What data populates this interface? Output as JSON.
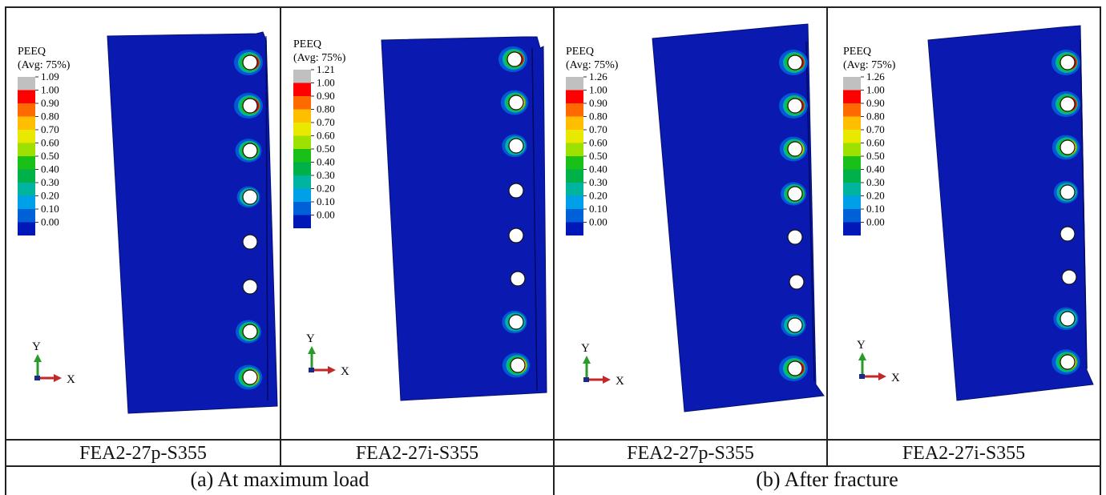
{
  "legend": {
    "title": "PEEQ",
    "subtitle": "(Avg: 75%)",
    "colors": [
      "#c0c0c0",
      "#ff0000",
      "#ff6a00",
      "#ffbe00",
      "#e8e800",
      "#9ee000",
      "#18c018",
      "#00b048",
      "#00b4a0",
      "#00a0e8",
      "#0060d8",
      "#0018b8"
    ]
  },
  "panels": [
    {
      "caption": "FEA2-27p-S355",
      "max_label": "1.09",
      "levels": [
        "1.00",
        "0.90",
        "0.80",
        "0.70",
        "0.60",
        "0.50",
        "0.40",
        "0.30",
        "0.20",
        "0.10",
        "0.00"
      ]
    },
    {
      "caption": "FEA2-27i-S355",
      "max_label": "1.21",
      "levels": [
        "1.00",
        "0.90",
        "0.80",
        "0.70",
        "0.60",
        "0.50",
        "0.40",
        "0.30",
        "0.20",
        "0.10",
        "0.00"
      ]
    },
    {
      "caption": "FEA2-27p-S355",
      "max_label": "1.26",
      "levels": [
        "1.00",
        "0.90",
        "0.80",
        "0.70",
        "0.60",
        "0.50",
        "0.40",
        "0.30",
        "0.20",
        "0.10",
        "0.00"
      ]
    },
    {
      "caption": "FEA2-27i-S355",
      "max_label": "1.26",
      "levels": [
        "1.00",
        "0.90",
        "0.80",
        "0.70",
        "0.60",
        "0.50",
        "0.40",
        "0.30",
        "0.20",
        "0.10",
        "0.00"
      ]
    }
  ],
  "axes": {
    "y": "Y",
    "x": "X"
  },
  "groups": [
    {
      "label": "(a) At maximum load"
    },
    {
      "label": "(b) After fracture"
    }
  ],
  "colors": {
    "plate": "#0a1ab0",
    "hole": "#ffffff"
  }
}
